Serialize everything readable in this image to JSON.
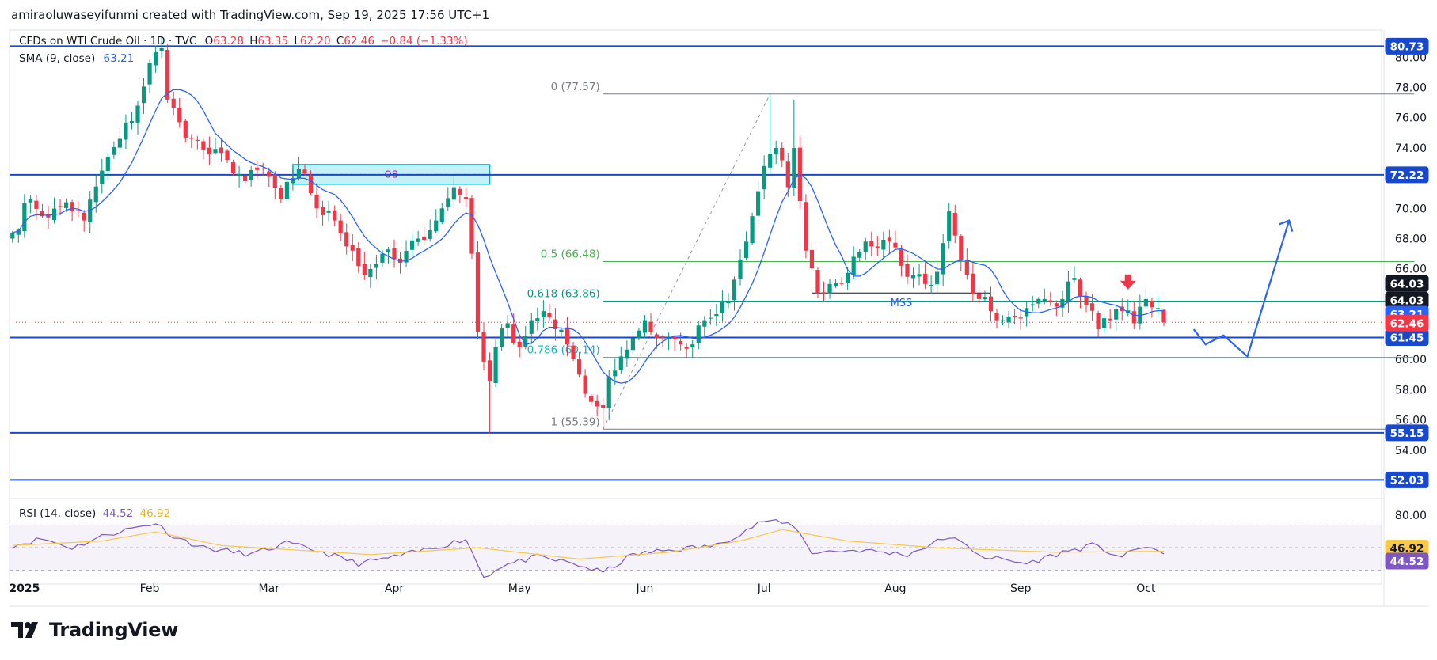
{
  "attribution": "amiraoluwaseyifunmi created with TradingView.com, Sep 19, 2025 17:56 UTC+1",
  "legend": {
    "symbol": "CFDs on WTI Crude Oil · 1D · TVC",
    "o_label": "O",
    "o_value": "63.28",
    "h_label": "H",
    "h_value": "63.35",
    "l_label": "L",
    "l_value": "62.20",
    "c_label": "C",
    "c_value": "62.46",
    "change": "−0.84 (−1.33%)",
    "sma_label": "SMA (9, close)",
    "sma_value": "63.21",
    "rsi_label": "RSI (14, close)",
    "rsi_value": "44.52",
    "rsi_ma_value": "46.92"
  },
  "brand": "TradingView",
  "chart_data": {
    "type": "candlestick",
    "symbol": "CFDs on WTI Crude Oil",
    "timeframe": "1D",
    "colors": {
      "up": "#089981",
      "down": "#f23645",
      "sma": "#2962ff",
      "level": "#1848cc",
      "rsi": "#7e57c2",
      "rsi_ma": "#f7c948",
      "fib_mid": "#4caf50",
      "fib_cyan": "#00bcd4",
      "ob_fill": "#b2ebf2",
      "ob_border": "#00acc1"
    },
    "price_axis": {
      "ylim": [
        50.9,
        81.8
      ],
      "ticks": [
        "80.00",
        "78.00",
        "76.00",
        "74.00",
        "72.00",
        "70.00",
        "68.00",
        "66.00",
        "64.00",
        "62.00",
        "60.00",
        "58.00",
        "56.00",
        "54.00"
      ],
      "tick_values": [
        80,
        78,
        76,
        74,
        72,
        70,
        68,
        66,
        64,
        62,
        60,
        58,
        56,
        54
      ]
    },
    "time_axis": {
      "labels": [
        "2025",
        "Feb",
        "Mar",
        "Apr",
        "May",
        "Jun",
        "Jul",
        "Aug",
        "Sep",
        "Oct"
      ],
      "bar_index": [
        2,
        23,
        43,
        64,
        85,
        106,
        126,
        148,
        169,
        190
      ],
      "total_slots": 230
    },
    "anchors": [
      {
        "i": 0,
        "p": 68.4
      },
      {
        "i": 3,
        "p": 70.6
      },
      {
        "i": 6,
        "p": 69.4
      },
      {
        "i": 9,
        "p": 70.4
      },
      {
        "i": 12,
        "p": 69.2
      },
      {
        "i": 15,
        "p": 72.5
      },
      {
        "i": 18,
        "p": 74.6
      },
      {
        "i": 21,
        "p": 76.8
      },
      {
        "i": 23,
        "p": 79.6
      },
      {
        "i": 25,
        "p": 80.6
      },
      {
        "i": 26,
        "p": 77.2
      },
      {
        "i": 28,
        "p": 75.7
      },
      {
        "i": 30,
        "p": 74.6
      },
      {
        "i": 33,
        "p": 73.6
      },
      {
        "i": 36,
        "p": 73.2
      },
      {
        "i": 39,
        "p": 71.8
      },
      {
        "i": 42,
        "p": 72.6
      },
      {
        "i": 45,
        "p": 70.6
      },
      {
        "i": 47,
        "p": 72.0
      },
      {
        "i": 49,
        "p": 72.3
      },
      {
        "i": 51,
        "p": 70.0
      },
      {
        "i": 54,
        "p": 69.2
      },
      {
        "i": 57,
        "p": 67.2
      },
      {
        "i": 59,
        "p": 65.6
      },
      {
        "i": 62,
        "p": 67.0
      },
      {
        "i": 65,
        "p": 66.4
      },
      {
        "i": 68,
        "p": 68.0
      },
      {
        "i": 71,
        "p": 69.2
      },
      {
        "i": 74,
        "p": 71.4
      },
      {
        "i": 76,
        "p": 70.6
      },
      {
        "i": 77,
        "p": 67.0
      },
      {
        "i": 78,
        "p": 61.8
      },
      {
        "i": 80,
        "p": 58.6
      },
      {
        "i": 81,
        "p": 60.8
      },
      {
        "i": 83,
        "p": 62.4
      },
      {
        "i": 85,
        "p": 60.8
      },
      {
        "i": 87,
        "p": 62.6
      },
      {
        "i": 89,
        "p": 63.2
      },
      {
        "i": 91,
        "p": 62.0
      },
      {
        "i": 93,
        "p": 61.0
      },
      {
        "i": 95,
        "p": 59.0
      },
      {
        "i": 97,
        "p": 57.2
      },
      {
        "i": 99,
        "p": 56.8
      },
      {
        "i": 100,
        "p": 58.8
      },
      {
        "i": 102,
        "p": 60.2
      },
      {
        "i": 104,
        "p": 61.4
      },
      {
        "i": 106,
        "p": 62.6
      },
      {
        "i": 108,
        "p": 61.4
      },
      {
        "i": 110,
        "p": 61.4
      },
      {
        "i": 112,
        "p": 61.0
      },
      {
        "i": 114,
        "p": 61.0
      },
      {
        "i": 116,
        "p": 62.6
      },
      {
        "i": 118,
        "p": 63.0
      },
      {
        "i": 120,
        "p": 63.8
      },
      {
        "i": 123,
        "p": 67.8
      },
      {
        "i": 126,
        "p": 72.8
      },
      {
        "i": 128,
        "p": 74.0
      },
      {
        "i": 130,
        "p": 71.4
      },
      {
        "i": 131,
        "p": 74.0
      },
      {
        "i": 133,
        "p": 67.2
      },
      {
        "i": 135,
        "p": 64.4
      },
      {
        "i": 137,
        "p": 65.0
      },
      {
        "i": 139,
        "p": 65.0
      },
      {
        "i": 141,
        "p": 66.8
      },
      {
        "i": 143,
        "p": 67.8
      },
      {
        "i": 145,
        "p": 67.4
      },
      {
        "i": 147,
        "p": 67.8
      },
      {
        "i": 149,
        "p": 66.2
      },
      {
        "i": 151,
        "p": 65.6
      },
      {
        "i": 153,
        "p": 65.0
      },
      {
        "i": 155,
        "p": 65.8
      },
      {
        "i": 157,
        "p": 69.8
      },
      {
        "i": 158,
        "p": 68.2
      },
      {
        "i": 160,
        "p": 65.6
      },
      {
        "i": 162,
        "p": 64.0
      },
      {
        "i": 164,
        "p": 63.2
      },
      {
        "i": 166,
        "p": 62.6
      },
      {
        "i": 168,
        "p": 62.8
      },
      {
        "i": 170,
        "p": 63.4
      },
      {
        "i": 172,
        "p": 64.0
      },
      {
        "i": 174,
        "p": 63.8
      },
      {
        "i": 176,
        "p": 64.0
      },
      {
        "i": 178,
        "p": 65.4
      },
      {
        "i": 179,
        "p": 64.2
      },
      {
        "i": 180,
        "p": 63.6
      },
      {
        "i": 182,
        "p": 62.0
      },
      {
        "i": 184,
        "p": 62.6
      },
      {
        "i": 186,
        "p": 63.2
      },
      {
        "i": 188,
        "p": 62.4
      },
      {
        "i": 190,
        "p": 64.0
      },
      {
        "i": 192,
        "p": 63.4
      },
      {
        "i": 193,
        "p": 62.46
      }
    ],
    "seed": 7,
    "last_candle": {
      "open": 63.28,
      "high": 63.35,
      "low": 62.2,
      "close": 62.46
    },
    "sma": {
      "label": "SMA (9, close)",
      "period": 9,
      "last": 63.21
    },
    "horizontal_levels": [
      {
        "value": 80.73,
        "label": "80.73"
      },
      {
        "value": 72.22,
        "label": "72.22"
      },
      {
        "value": 61.45,
        "label": "61.45"
      },
      {
        "value": 55.15,
        "label": "55.15"
      },
      {
        "value": 52.03,
        "label": "52.03"
      }
    ],
    "price_badges": [
      {
        "value": 64.03,
        "label": "64.03",
        "bg": "#131722"
      },
      {
        "value": 64.03,
        "label": "64.03",
        "bg": "#ffffff",
        "fg": "#131722"
      },
      {
        "value": 63.21,
        "label": "63.21",
        "bg": "#2962ff"
      },
      {
        "value": 62.46,
        "label": "62.46",
        "bg": "#f23645"
      }
    ],
    "fibonacci": {
      "from_i": 99,
      "to_i": 127,
      "high": 77.57,
      "low": 55.39,
      "end_i": 235,
      "levels": [
        {
          "ratio": "0",
          "value": 77.57,
          "label": "0 (77.57)",
          "color": "#787b86"
        },
        {
          "ratio": "0.5",
          "value": 66.48,
          "label": "0.5 (66.48)",
          "color": "#4caf50"
        },
        {
          "ratio": "0.618",
          "value": 63.86,
          "label": "0.618 (63.86)",
          "color": "#089981"
        },
        {
          "ratio": "0.786",
          "value": 60.14,
          "label": "0.786 (60.14)",
          "color": "#00bcd4"
        },
        {
          "ratio": "1",
          "value": 55.39,
          "label": "1 (55.39)",
          "color": "#787b86"
        }
      ]
    },
    "order_block": {
      "label": "OB",
      "i_from": 47,
      "i_to": 80,
      "top": 72.9,
      "bottom": 71.6
    },
    "mss": {
      "label": "MSS",
      "value": 64.4,
      "i_from": 134,
      "i_to": 164
    },
    "arrow_down": {
      "i": 187,
      "price": 65.0
    },
    "projection": [
      {
        "i": 198,
        "p": 62.0
      },
      {
        "i": 200,
        "p": 61.0
      },
      {
        "i": 203,
        "p": 61.6
      },
      {
        "i": 207,
        "p": 60.2
      },
      {
        "i": 214,
        "p": 69.2
      }
    ],
    "rsi": {
      "label": "RSI (14, close)",
      "value": 44.52,
      "ma_value": 46.92,
      "band_top": "80.00",
      "anchors": [
        {
          "i": 0,
          "v": 52
        },
        {
          "i": 5,
          "v": 58
        },
        {
          "i": 10,
          "v": 50
        },
        {
          "i": 16,
          "v": 62
        },
        {
          "i": 24,
          "v": 72
        },
        {
          "i": 27,
          "v": 60
        },
        {
          "i": 32,
          "v": 50
        },
        {
          "i": 40,
          "v": 44
        },
        {
          "i": 46,
          "v": 54
        },
        {
          "i": 52,
          "v": 46
        },
        {
          "i": 58,
          "v": 36
        },
        {
          "i": 66,
          "v": 44
        },
        {
          "i": 72,
          "v": 52
        },
        {
          "i": 76,
          "v": 58
        },
        {
          "i": 79,
          "v": 24
        },
        {
          "i": 82,
          "v": 34
        },
        {
          "i": 88,
          "v": 42
        },
        {
          "i": 94,
          "v": 36
        },
        {
          "i": 99,
          "v": 28
        },
        {
          "i": 104,
          "v": 44
        },
        {
          "i": 110,
          "v": 48
        },
        {
          "i": 118,
          "v": 52
        },
        {
          "i": 126,
          "v": 74
        },
        {
          "i": 131,
          "v": 70
        },
        {
          "i": 134,
          "v": 46
        },
        {
          "i": 142,
          "v": 48
        },
        {
          "i": 150,
          "v": 44
        },
        {
          "i": 157,
          "v": 60
        },
        {
          "i": 163,
          "v": 42
        },
        {
          "i": 170,
          "v": 36
        },
        {
          "i": 176,
          "v": 46
        },
        {
          "i": 181,
          "v": 52
        },
        {
          "i": 186,
          "v": 42
        },
        {
          "i": 190,
          "v": 52
        },
        {
          "i": 193,
          "v": 44.5
        }
      ],
      "ma_anchors": [
        {
          "i": 0,
          "v": 52
        },
        {
          "i": 15,
          "v": 56
        },
        {
          "i": 24,
          "v": 64
        },
        {
          "i": 35,
          "v": 52
        },
        {
          "i": 60,
          "v": 44
        },
        {
          "i": 78,
          "v": 50
        },
        {
          "i": 95,
          "v": 40
        },
        {
          "i": 110,
          "v": 46
        },
        {
          "i": 122,
          "v": 56
        },
        {
          "i": 129,
          "v": 66
        },
        {
          "i": 140,
          "v": 56
        },
        {
          "i": 155,
          "v": 50
        },
        {
          "i": 175,
          "v": 46
        },
        {
          "i": 193,
          "v": 46.9
        }
      ]
    }
  }
}
